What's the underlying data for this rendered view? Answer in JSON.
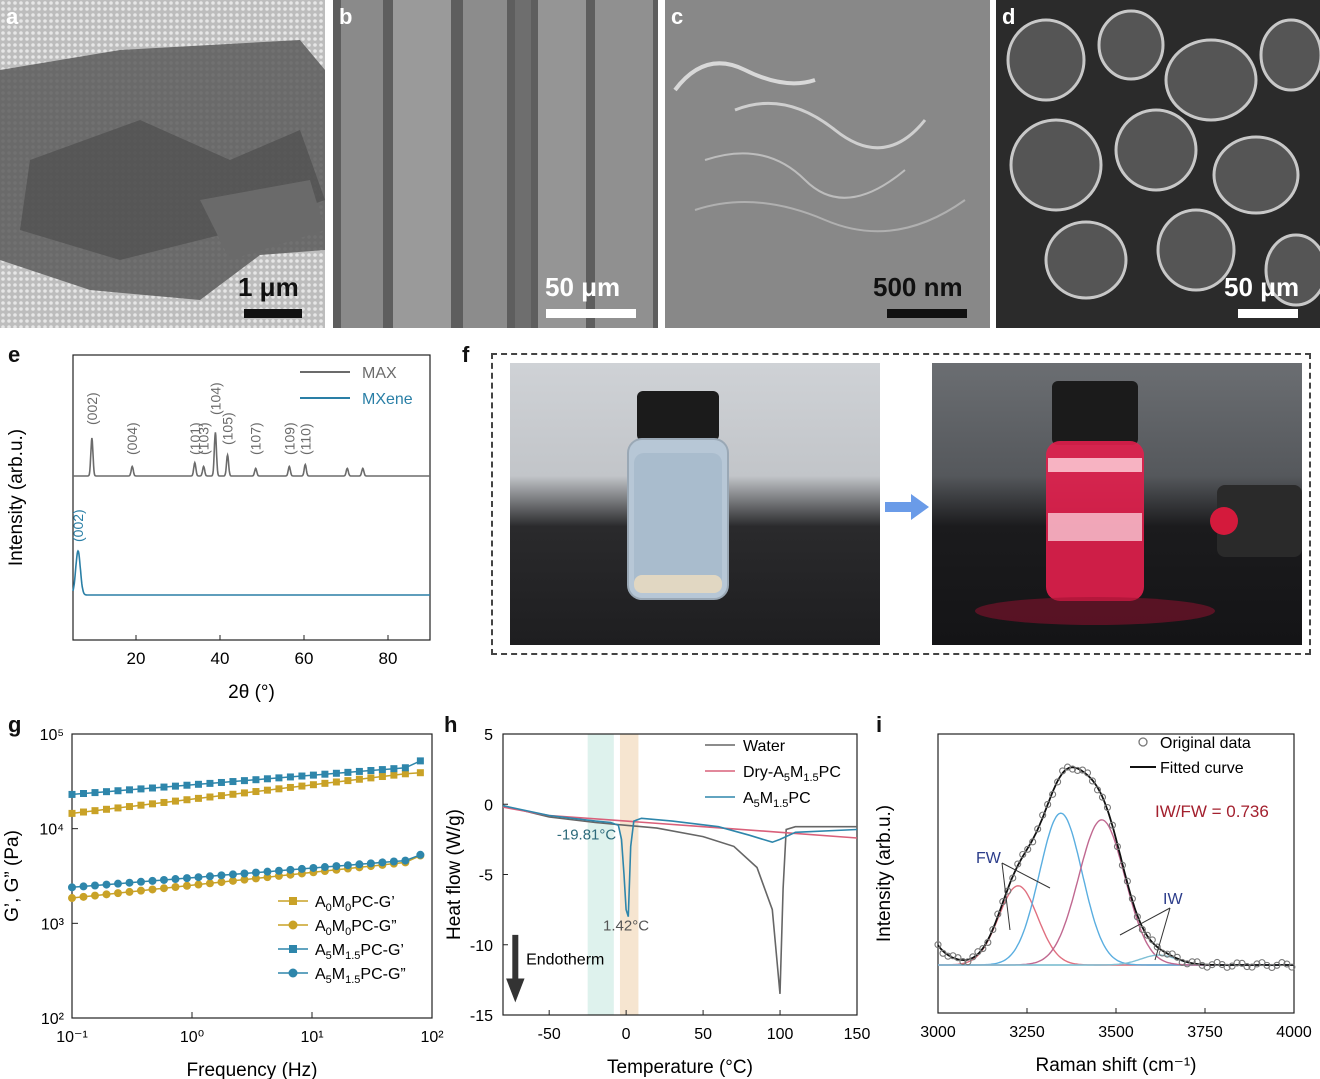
{
  "panels": {
    "a": {
      "label": "a",
      "scale": "1 μm"
    },
    "b": {
      "label": "b",
      "scale": "50 μm"
    },
    "c": {
      "label": "c",
      "scale": "500 nm"
    },
    "d": {
      "label": "d",
      "scale": "50 μm"
    },
    "e": {
      "label": "e"
    },
    "f": {
      "label": "f"
    },
    "g": {
      "label": "g"
    },
    "h": {
      "label": "h"
    },
    "i": {
      "label": "i"
    }
  },
  "colors": {
    "max": "#6b6b6b",
    "mxene": "#2a7fa6",
    "gold": "#c9a227",
    "blue": "#2e86ab",
    "water": "#666666",
    "dry": "#d9607a",
    "fit": "#111111",
    "highlight_text": "#a3202e"
  },
  "chart_data": [
    {
      "id": "e",
      "type": "line",
      "xlabel": "2θ (°)",
      "ylabel": "Intensity (arb.u.)",
      "xlim": [
        5,
        90
      ],
      "xticks": [
        20,
        40,
        60,
        80
      ],
      "series": [
        {
          "name": "MAX",
          "peaks": [
            [
              9.5,
              1.0
            ],
            [
              19.1,
              0.25
            ],
            [
              34.0,
              0.35
            ],
            [
              36.1,
              0.25
            ],
            [
              38.9,
              1.15
            ],
            [
              41.8,
              0.55
            ],
            [
              48.5,
              0.2
            ],
            [
              56.5,
              0.25
            ],
            [
              60.3,
              0.3
            ],
            [
              70.3,
              0.2
            ],
            [
              74.0,
              0.2
            ]
          ]
        },
        {
          "name": "MXene",
          "peaks": [
            [
              6.2,
              1.0
            ]
          ]
        }
      ],
      "annotations_max": [
        "(002)",
        "(004)",
        "(101)",
        "(103)",
        "(104)",
        "(105)",
        "(107)",
        "(109)",
        "(110)"
      ],
      "annotation_mxene": "(002)"
    },
    {
      "id": "g",
      "type": "line",
      "xscale": "log",
      "yscale": "log",
      "xlabel": "Frequency (Hz)",
      "ylabel": "G’, G” (Pa)",
      "xlim": [
        0.1,
        100
      ],
      "ylim": [
        100,
        100000
      ],
      "xticks": [
        "10⁻¹",
        "10⁰",
        "10¹",
        "10²"
      ],
      "yticks": [
        "10²",
        "10³",
        "10⁴",
        "10⁵"
      ],
      "series": [
        {
          "name": "A0M0PC-G’",
          "start": 14500,
          "end": 38000,
          "last": 39000
        },
        {
          "name": "A0M0PC-G”",
          "start": 1850,
          "end": 4400,
          "last": 5200
        },
        {
          "name": "A5M1.5PC-G’",
          "start": 23000,
          "end": 44000,
          "last": 52000
        },
        {
          "name": "A5M1.5PC-G”",
          "start": 2400,
          "end": 4600,
          "last": 5300
        }
      ]
    },
    {
      "id": "h",
      "type": "line",
      "xlabel": "Temperature (°C)",
      "ylabel": "Heat flow (W/g)",
      "xlim": [
        -80,
        150
      ],
      "ylim": [
        -15,
        5
      ],
      "xticks": [
        -50,
        0,
        50,
        100,
        150
      ],
      "yticks": [
        5,
        0,
        -5,
        -10,
        -15
      ],
      "series": [
        {
          "name": "Water",
          "x": [
            -80,
            -50,
            -20,
            0,
            20,
            50,
            70,
            85,
            95,
            100,
            102,
            104,
            110,
            150
          ],
          "y": [
            -0.1,
            -0.9,
            -1.3,
            -1.5,
            -1.7,
            -2.3,
            -3.0,
            -4.5,
            -7.5,
            -13.5,
            -6.0,
            -1.8,
            -1.6,
            -1.6
          ]
        },
        {
          "name": "Dry-A5M1.5PC",
          "x": [
            -80,
            -50,
            0,
            50,
            100,
            150
          ],
          "y": [
            -0.2,
            -0.8,
            -1.2,
            -1.6,
            -2.0,
            -2.4
          ]
        },
        {
          "name": "A5M1.5PC",
          "x": [
            -80,
            -50,
            -19.81,
            -10,
            -5,
            -3,
            -1.4,
            0,
            1.42,
            3,
            5,
            10,
            30,
            60,
            80,
            95,
            100,
            110,
            150
          ],
          "y": [
            -0.1,
            -0.8,
            -1.2,
            -1.3,
            -1.5,
            -2.5,
            -5.0,
            -7.5,
            -8.0,
            -3.0,
            -1.2,
            -1.0,
            -1.2,
            -1.6,
            -2.2,
            -2.7,
            -2.5,
            -2.0,
            -1.8
          ]
        }
      ],
      "annotations": [
        "-19.81°C",
        "1.42°C",
        "Endotherm"
      ]
    },
    {
      "id": "i",
      "type": "line",
      "xlabel": "Raman shift (cm⁻¹)",
      "ylabel": "Intensity (arb.u.)",
      "xlim": [
        3000,
        4000
      ],
      "xticks": [
        3000,
        3250,
        3500,
        3750,
        4000
      ],
      "series": [
        {
          "name": "Original data"
        },
        {
          "name": "Fitted curve"
        }
      ],
      "components": [
        {
          "center": 3225,
          "height": 0.48,
          "width": 55
        },
        {
          "center": 3345,
          "height": 0.92,
          "width": 60
        },
        {
          "center": 3460,
          "height": 0.88,
          "width": 65
        },
        {
          "center": 3620,
          "height": 0.06,
          "width": 50
        }
      ],
      "ratio": "IW/FW = 0.736",
      "labels": [
        "FW",
        "IW"
      ]
    }
  ],
  "legend_e": [
    "MAX",
    "MXene"
  ],
  "legend_g": [
    "A",
    "0",
    "M",
    "0",
    "PC-G’"
  ],
  "legend_g_items": [
    {
      "a": "0",
      "m": "0",
      "suffix": "PC-G’"
    },
    {
      "a": "0",
      "m": "0",
      "suffix": "PC-G”"
    },
    {
      "a": "5",
      "m": "1.5",
      "suffix": "PC-G’"
    },
    {
      "a": "5",
      "m": "1.5",
      "suffix": "PC-G”"
    }
  ],
  "legend_h_items": [
    {
      "pre": "Water",
      "sub": "",
      "mid": "",
      "sub2": "",
      "post": ""
    },
    {
      "pre": "Dry-A",
      "sub": "5",
      "mid": "M",
      "sub2": "1.5",
      "post": "PC"
    },
    {
      "pre": "A",
      "sub": "5",
      "mid": "M",
      "sub2": "1.5",
      "post": "PC"
    }
  ],
  "legend_i": [
    "Original data",
    "Fitted curve"
  ]
}
